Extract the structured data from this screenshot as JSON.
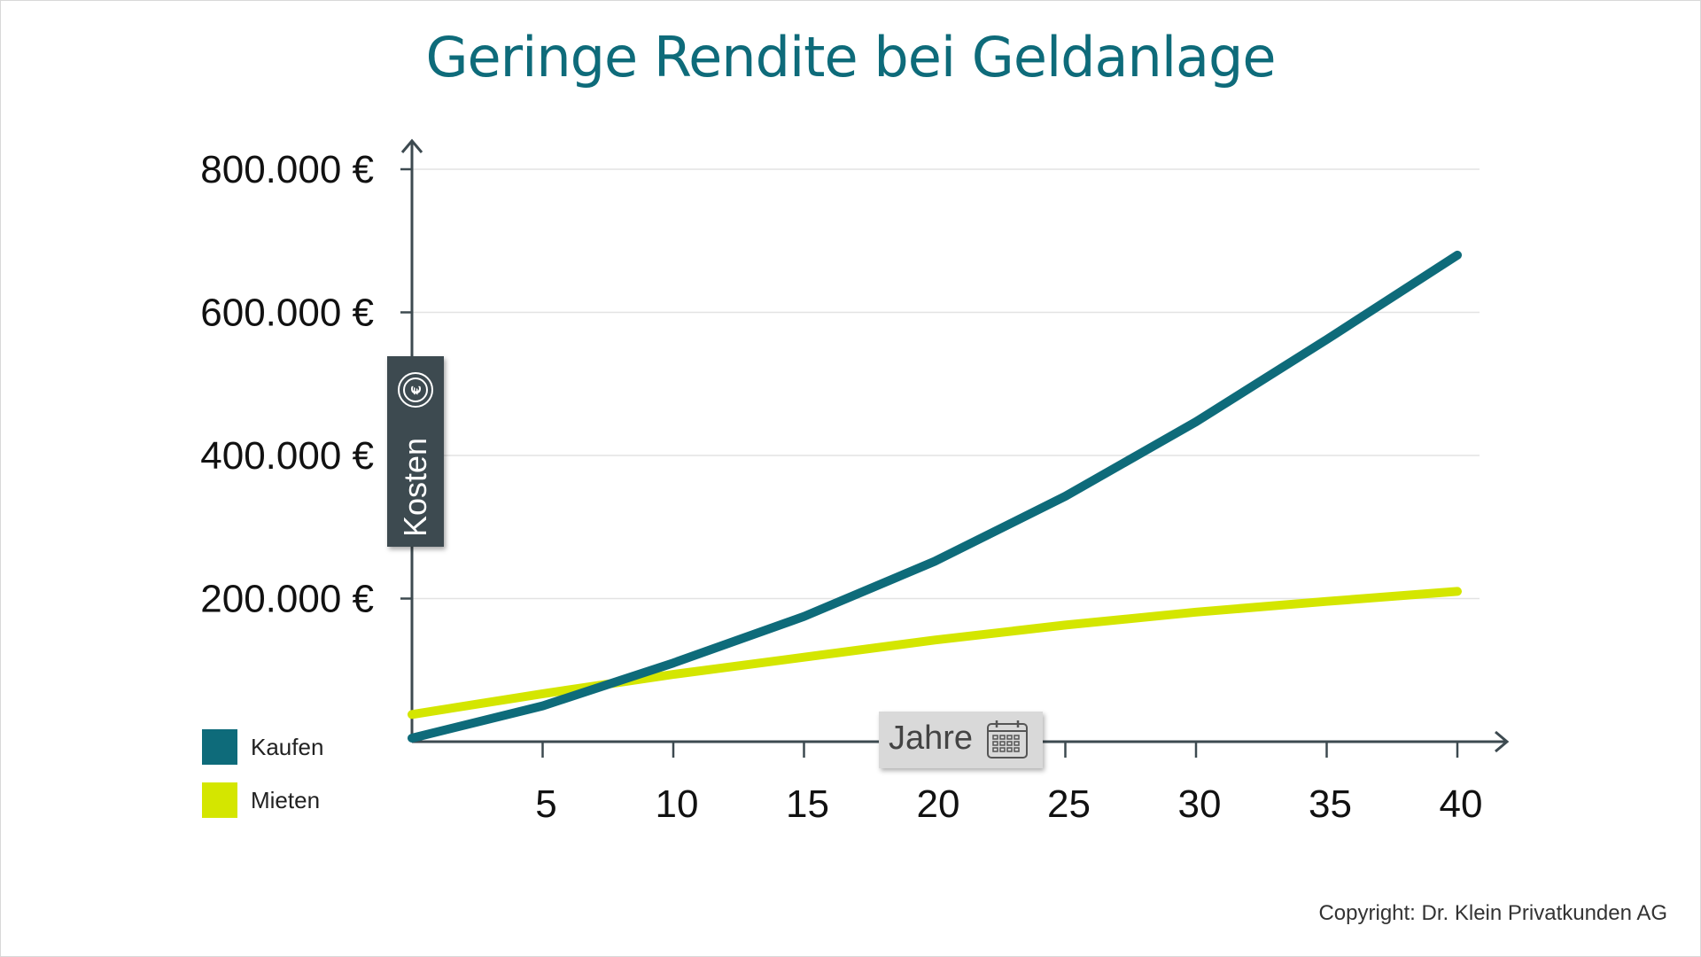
{
  "chart_data": {
    "type": "line",
    "title": "Geringe Rendite bei Geldanlage",
    "xlabel": "Jahre",
    "ylabel": "Kosten",
    "x_ticks": [
      5,
      10,
      15,
      20,
      25,
      30,
      35,
      40
    ],
    "y_ticks": [
      200000,
      400000,
      600000,
      800000
    ],
    "y_tick_labels": [
      "200.000 €",
      "400.000 €",
      "600.000 €",
      "800.000 €"
    ],
    "xlim": [
      0,
      40
    ],
    "ylim": [
      0,
      800000
    ],
    "grid": true,
    "legend_position": "bottom-left",
    "series": [
      {
        "name": "Kaufen",
        "color": "#0e6b7a",
        "x": [
          0,
          5,
          10,
          15,
          20,
          25,
          30,
          35,
          40
        ],
        "y": [
          5000,
          50000,
          110000,
          175000,
          252000,
          343000,
          447000,
          562000,
          680000
        ]
      },
      {
        "name": "Mieten",
        "color": "#d4e600",
        "x": [
          0,
          5,
          10,
          15,
          20,
          25,
          30,
          35,
          40
        ],
        "y": [
          38000,
          67000,
          94000,
          118000,
          142000,
          163000,
          181000,
          196000,
          210000
        ]
      }
    ]
  },
  "copyright": "Copyright: Dr. Klein Privatkunden AG",
  "icons": {
    "ylabel_icon": "euro-coin-icon",
    "xlabel_icon": "calendar-icon"
  }
}
